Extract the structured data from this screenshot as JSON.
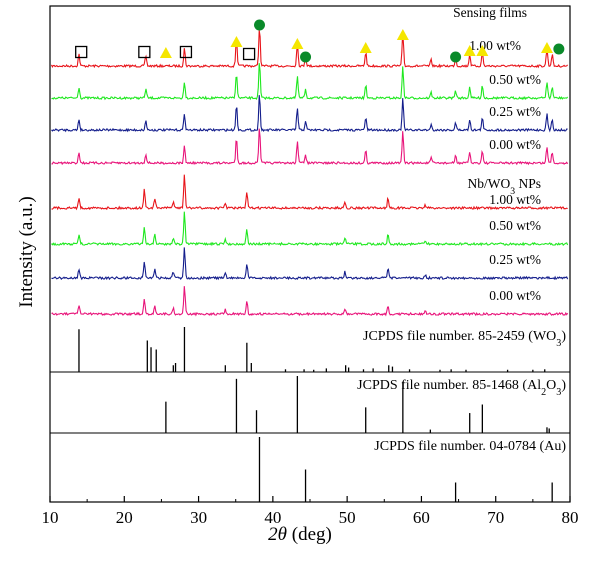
{
  "chart_data": {
    "type": "line",
    "xlabel_italic": "2θ",
    "xlabel_rest": " (deg)",
    "ylabel": "Intensity (a.u.)",
    "xlim": [
      10,
      80
    ],
    "xticks": [
      10,
      20,
      30,
      40,
      50,
      60,
      70,
      80
    ],
    "colors": {
      "red": "#e8141a",
      "green": "#1fe81f",
      "navy": "#141e8c",
      "magenta": "#e8147a",
      "black": "#000000",
      "triangle": "#f5e600",
      "circle": "#0a8a2a"
    },
    "group_labels": {
      "sensing": "Sensing films",
      "nps_prefix": "Nb/WO",
      "nps_sub": "3",
      "nps_suffix": " NPs"
    },
    "series": [
      {
        "name": "1.00 wt%",
        "group": "sensing",
        "color": "red"
      },
      {
        "name": "0.50 wt%",
        "group": "sensing",
        "color": "green"
      },
      {
        "name": "0.25 wt%",
        "group": "sensing",
        "color": "navy"
      },
      {
        "name": "0.00 wt%",
        "group": "sensing",
        "color": "magenta"
      },
      {
        "name": "1.00 wt%",
        "group": "nps",
        "color": "red"
      },
      {
        "name": "0.50 wt%",
        "group": "nps",
        "color": "green"
      },
      {
        "name": "0.25 wt%",
        "group": "nps",
        "color": "navy"
      },
      {
        "name": "0.00 wt%",
        "group": "nps",
        "color": "magenta"
      }
    ],
    "sensing_peaks": [
      {
        "x": 13.9,
        "h": 0.3
      },
      {
        "x": 22.9,
        "h": 0.25
      },
      {
        "x": 28.1,
        "h": 0.45
      },
      {
        "x": 35.1,
        "h": 0.7
      },
      {
        "x": 38.2,
        "h": 1.0
      },
      {
        "x": 43.3,
        "h": 0.6
      },
      {
        "x": 44.4,
        "h": 0.25
      },
      {
        "x": 52.5,
        "h": 0.35
      },
      {
        "x": 57.5,
        "h": 0.85
      },
      {
        "x": 61.3,
        "h": 0.15
      },
      {
        "x": 64.6,
        "h": 0.2
      },
      {
        "x": 66.5,
        "h": 0.3
      },
      {
        "x": 68.2,
        "h": 0.35
      },
      {
        "x": 76.9,
        "h": 0.45
      },
      {
        "x": 77.6,
        "h": 0.3
      }
    ],
    "nps_peaks": [
      {
        "x": 13.9,
        "h": 0.3
      },
      {
        "x": 22.7,
        "h": 0.55
      },
      {
        "x": 24.1,
        "h": 0.3
      },
      {
        "x": 26.6,
        "h": 0.2
      },
      {
        "x": 28.1,
        "h": 1.0
      },
      {
        "x": 33.6,
        "h": 0.15
      },
      {
        "x": 36.5,
        "h": 0.45
      },
      {
        "x": 49.7,
        "h": 0.2
      },
      {
        "x": 55.5,
        "h": 0.3
      },
      {
        "x": 60.5,
        "h": 0.1
      }
    ],
    "markers": {
      "squares": [
        14.2,
        22.7,
        28.3,
        36.8
      ],
      "triangles": [
        25.6,
        35.1,
        43.3,
        52.5,
        57.5,
        66.5,
        68.2,
        76.9
      ],
      "circles": [
        38.2,
        44.4,
        64.6,
        78.5
      ]
    },
    "references": [
      {
        "label_prefix": "JCPDS file number. 85-2459 (WO",
        "label_sub": "3",
        "label_suffix": ")",
        "lines": [
          {
            "x": 13.9,
            "h": 0.95
          },
          {
            "x": 23.1,
            "h": 0.7
          },
          {
            "x": 23.6,
            "h": 0.55
          },
          {
            "x": 24.3,
            "h": 0.5
          },
          {
            "x": 26.6,
            "h": 0.15
          },
          {
            "x": 26.9,
            "h": 0.2
          },
          {
            "x": 28.1,
            "h": 1.0
          },
          {
            "x": 33.6,
            "h": 0.15
          },
          {
            "x": 36.5,
            "h": 0.65
          },
          {
            "x": 37.1,
            "h": 0.2
          },
          {
            "x": 41.7,
            "h": 0.06
          },
          {
            "x": 44.2,
            "h": 0.06
          },
          {
            "x": 45.5,
            "h": 0.05
          },
          {
            "x": 47.2,
            "h": 0.08
          },
          {
            "x": 49.8,
            "h": 0.15
          },
          {
            "x": 50.2,
            "h": 0.1
          },
          {
            "x": 52.2,
            "h": 0.06
          },
          {
            "x": 53.5,
            "h": 0.08
          },
          {
            "x": 55.6,
            "h": 0.15
          },
          {
            "x": 56.1,
            "h": 0.12
          },
          {
            "x": 58.4,
            "h": 0.06
          },
          {
            "x": 62.5,
            "h": 0.05
          },
          {
            "x": 64.0,
            "h": 0.06
          },
          {
            "x": 66.0,
            "h": 0.05
          },
          {
            "x": 71.6,
            "h": 0.05
          },
          {
            "x": 75.0,
            "h": 0.05
          },
          {
            "x": 76.6,
            "h": 0.06
          }
        ]
      },
      {
        "label_prefix": "JCPDS file number. 85-1468 (Al",
        "label_sub1": "2",
        "label_mid": "O",
        "label_sub": "3",
        "label_suffix": ")",
        "lines": [
          {
            "x": 25.6,
            "h": 0.55
          },
          {
            "x": 35.1,
            "h": 0.95
          },
          {
            "x": 37.8,
            "h": 0.4
          },
          {
            "x": 43.3,
            "h": 1.0
          },
          {
            "x": 52.5,
            "h": 0.45
          },
          {
            "x": 57.5,
            "h": 0.9
          },
          {
            "x": 61.2,
            "h": 0.06
          },
          {
            "x": 66.5,
            "h": 0.35
          },
          {
            "x": 68.2,
            "h": 0.5
          },
          {
            "x": 76.9,
            "h": 0.1
          },
          {
            "x": 77.2,
            "h": 0.08
          }
        ]
      },
      {
        "label_prefix": "JCPDS file number. 04-0784 (Au)",
        "lines": [
          {
            "x": 38.2,
            "h": 1.0
          },
          {
            "x": 44.4,
            "h": 0.5
          },
          {
            "x": 64.6,
            "h": 0.3
          },
          {
            "x": 77.6,
            "h": 0.3
          }
        ]
      }
    ]
  }
}
